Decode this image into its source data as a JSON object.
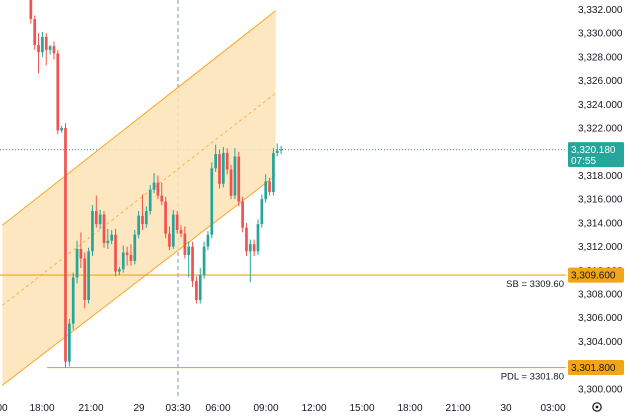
{
  "colors": {
    "up": "#26a69a",
    "down": "#ef5350",
    "channel_fill": "#fde3b6",
    "channel_line": "#f7a823",
    "level_line": "#f2a515",
    "price_line": "#26a69a",
    "crosshair": "#7f96b3",
    "axis_text": "#131722"
  },
  "settings_icon": "gear-icon",
  "chart_data": {
    "type": "candlestick",
    "symbol_hint": "",
    "ylim": [
      3299.4,
      3332.8
    ],
    "y_ticks": [
      3300,
      3302,
      3304,
      3306,
      3308,
      3310,
      3312,
      3314,
      3316,
      3318,
      3320,
      3322,
      3324,
      3326,
      3328,
      3330,
      3332
    ],
    "y_tick_labels": [
      "3,300.000",
      "3,302.000",
      "3,304.000",
      "3,306.000",
      "3,308.000",
      "3,310.000",
      "3,312.000",
      "3,314.000",
      "3,316.000",
      "3,318.000",
      "3,320.000",
      "3,322.000",
      "3,324.000",
      "3,326.000",
      "3,328.000",
      "3,330.000",
      "3,332.000"
    ],
    "x_ticks": [
      "00",
      "18:00",
      "21:00",
      "29",
      "03:30",
      "06:00",
      "09:00",
      "12:00",
      "15:00",
      "18:00",
      "21:00",
      "30",
      "03:00"
    ],
    "candles": [
      {
        "o": 3333.5,
        "h": 3334.0,
        "c": 3331.2,
        "l": 3330.8
      },
      {
        "o": 3331.2,
        "h": 3331.5,
        "c": 3329.0,
        "l": 3328.6
      },
      {
        "o": 3329.0,
        "h": 3330.0,
        "c": 3328.4,
        "l": 3326.6
      },
      {
        "o": 3328.4,
        "h": 3330.1,
        "c": 3329.7,
        "l": 3328.0
      },
      {
        "o": 3329.7,
        "h": 3330.0,
        "c": 3328.6,
        "l": 3327.3
      },
      {
        "o": 3328.6,
        "h": 3329.0,
        "c": 3328.9,
        "l": 3328.2
      },
      {
        "o": 3328.9,
        "h": 3329.3,
        "c": 3328.3,
        "l": 3327.8
      },
      {
        "o": 3328.3,
        "h": 3328.6,
        "c": 3321.8,
        "l": 3321.5
      },
      {
        "o": 3321.8,
        "h": 3322.2,
        "c": 3322.0,
        "l": 3321.6
      },
      {
        "o": 3322.0,
        "h": 3322.4,
        "c": 3302.3,
        "l": 3301.8
      },
      {
        "o": 3302.3,
        "h": 3305.9,
        "c": 3305.5,
        "l": 3301.9
      },
      {
        "o": 3305.5,
        "h": 3309.8,
        "c": 3309.4,
        "l": 3305.0
      },
      {
        "o": 3309.4,
        "h": 3312.5,
        "c": 3311.8,
        "l": 3308.9
      },
      {
        "o": 3311.8,
        "h": 3313.2,
        "c": 3311.0,
        "l": 3310.2
      },
      {
        "o": 3311.0,
        "h": 3311.5,
        "c": 3307.5,
        "l": 3306.8
      },
      {
        "o": 3307.5,
        "h": 3311.9,
        "c": 3311.6,
        "l": 3307.2
      },
      {
        "o": 3311.6,
        "h": 3315.5,
        "c": 3315.0,
        "l": 3311.2
      },
      {
        "o": 3315.0,
        "h": 3316.3,
        "c": 3313.9,
        "l": 3313.6
      },
      {
        "o": 3313.9,
        "h": 3315.1,
        "c": 3314.7,
        "l": 3313.5
      },
      {
        "o": 3314.7,
        "h": 3315.0,
        "c": 3312.3,
        "l": 3311.9
      },
      {
        "o": 3312.3,
        "h": 3313.5,
        "c": 3312.5,
        "l": 3311.8
      },
      {
        "o": 3312.5,
        "h": 3313.4,
        "c": 3313.0,
        "l": 3312.2
      },
      {
        "o": 3313.0,
        "h": 3313.5,
        "c": 3309.9,
        "l": 3309.5
      },
      {
        "o": 3309.9,
        "h": 3310.3,
        "c": 3310.1,
        "l": 3309.6
      },
      {
        "o": 3310.1,
        "h": 3312.1,
        "c": 3311.5,
        "l": 3309.8
      },
      {
        "o": 3311.5,
        "h": 3312.0,
        "c": 3311.3,
        "l": 3310.4
      },
      {
        "o": 3311.3,
        "h": 3312.2,
        "c": 3310.8,
        "l": 3310.4
      },
      {
        "o": 3310.8,
        "h": 3313.4,
        "c": 3313.0,
        "l": 3310.5
      },
      {
        "o": 3313.0,
        "h": 3315.0,
        "c": 3314.6,
        "l": 3312.7
      },
      {
        "o": 3314.6,
        "h": 3316.4,
        "c": 3313.9,
        "l": 3313.4
      },
      {
        "o": 3313.9,
        "h": 3315.4,
        "c": 3315.0,
        "l": 3313.6
      },
      {
        "o": 3315.0,
        "h": 3317.2,
        "c": 3316.8,
        "l": 3314.7
      },
      {
        "o": 3316.8,
        "h": 3318.2,
        "c": 3317.4,
        "l": 3316.5
      },
      {
        "o": 3317.4,
        "h": 3318.0,
        "c": 3316.3,
        "l": 3316.0
      },
      {
        "o": 3316.3,
        "h": 3317.4,
        "c": 3315.8,
        "l": 3315.5
      },
      {
        "o": 3315.8,
        "h": 3316.2,
        "c": 3313.1,
        "l": 3312.7
      },
      {
        "o": 3313.1,
        "h": 3313.7,
        "c": 3312.0,
        "l": 3311.7
      },
      {
        "o": 3312.0,
        "h": 3315.1,
        "c": 3314.7,
        "l": 3311.8
      },
      {
        "o": 3314.7,
        "h": 3315.0,
        "c": 3313.4,
        "l": 3313.1
      },
      {
        "o": 3313.4,
        "h": 3313.8,
        "c": 3313.1,
        "l": 3312.8
      },
      {
        "o": 3313.1,
        "h": 3313.7,
        "c": 3311.3,
        "l": 3311.0
      },
      {
        "o": 3311.3,
        "h": 3312.4,
        "c": 3312.0,
        "l": 3309.4
      },
      {
        "o": 3312.0,
        "h": 3312.4,
        "c": 3309.1,
        "l": 3308.6
      },
      {
        "o": 3309.1,
        "h": 3309.5,
        "c": 3307.5,
        "l": 3307.2
      },
      {
        "o": 3307.5,
        "h": 3310.2,
        "c": 3309.6,
        "l": 3307.2
      },
      {
        "o": 3309.6,
        "h": 3312.4,
        "c": 3312.0,
        "l": 3309.3
      },
      {
        "o": 3312.0,
        "h": 3313.3,
        "c": 3313.0,
        "l": 3311.7
      },
      {
        "o": 3313.0,
        "h": 3319.1,
        "c": 3318.6,
        "l": 3312.7
      },
      {
        "o": 3318.6,
        "h": 3320.6,
        "c": 3319.8,
        "l": 3318.3
      },
      {
        "o": 3319.8,
        "h": 3320.2,
        "c": 3317.3,
        "l": 3316.9
      },
      {
        "o": 3317.3,
        "h": 3320.4,
        "c": 3319.9,
        "l": 3317.0
      },
      {
        "o": 3319.9,
        "h": 3320.3,
        "c": 3318.5,
        "l": 3318.1
      },
      {
        "o": 3318.5,
        "h": 3318.9,
        "c": 3316.3,
        "l": 3316.0
      },
      {
        "o": 3316.3,
        "h": 3320.3,
        "c": 3319.6,
        "l": 3316.0
      },
      {
        "o": 3319.6,
        "h": 3320.0,
        "c": 3315.8,
        "l": 3315.4
      },
      {
        "o": 3315.8,
        "h": 3316.2,
        "c": 3313.6,
        "l": 3313.2
      },
      {
        "o": 3313.6,
        "h": 3314.0,
        "c": 3311.6,
        "l": 3311.2
      },
      {
        "o": 3311.6,
        "h": 3312.6,
        "c": 3312.2,
        "l": 3309.0
      },
      {
        "o": 3312.2,
        "h": 3312.6,
        "c": 3311.6,
        "l": 3311.2
      },
      {
        "o": 3311.6,
        "h": 3314.3,
        "c": 3313.9,
        "l": 3311.3
      },
      {
        "o": 3313.9,
        "h": 3316.4,
        "c": 3316.0,
        "l": 3313.6
      },
      {
        "o": 3316.0,
        "h": 3318.1,
        "c": 3317.5,
        "l": 3315.7
      },
      {
        "o": 3317.5,
        "h": 3317.8,
        "c": 3316.6,
        "l": 3316.3
      },
      {
        "o": 3316.6,
        "h": 3320.3,
        "c": 3319.9,
        "l": 3316.3
      },
      {
        "o": 3319.9,
        "h": 3320.7,
        "c": 3320.1,
        "l": 3319.6
      },
      {
        "o": 3320.1,
        "h": 3320.5,
        "c": 3320.2,
        "l": 3319.8
      }
    ],
    "channel": {
      "upper": [
        {
          "index": -7.4,
          "y": 3313.8
        },
        {
          "index": 63.6,
          "y": 3331.9
        }
      ],
      "lower": [
        {
          "index": -7.4,
          "y": 3300.3
        },
        {
          "index": 63.6,
          "y": 3318.0
        }
      ]
    },
    "levels": [
      {
        "label": "SB = 3309.60",
        "tag": "3,309.600",
        "value": 3309.6
      },
      {
        "label": "PDL = 3301.80",
        "tag": "3,301.800",
        "value": 3301.8
      }
    ],
    "current_price": {
      "value": 3320.18,
      "tag": "3,320.180",
      "countdown": "07:55"
    },
    "crosshair_tick": "03:30"
  }
}
